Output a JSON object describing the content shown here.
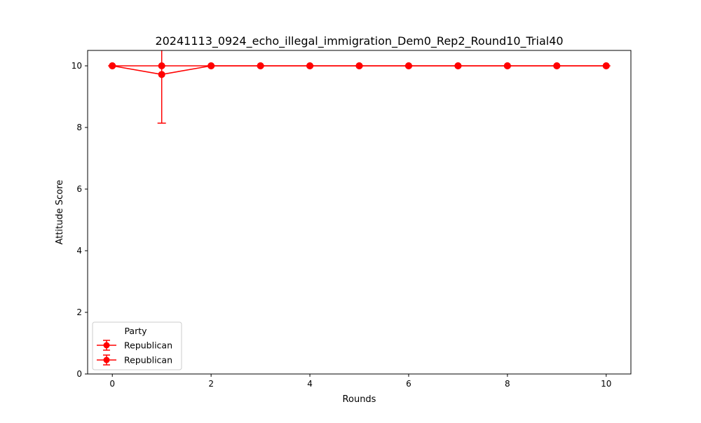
{
  "chart_data": {
    "type": "line",
    "title": "20241113_0924_echo_illegal_immigration_Dem0_Rep2_Round10_Trial40",
    "xlabel": "Rounds",
    "ylabel": "Attitude Score",
    "xlim": [
      -0.5,
      10.5
    ],
    "ylim": [
      0,
      10.5
    ],
    "x_ticks": [
      0,
      2,
      4,
      6,
      8,
      10
    ],
    "y_ticks": [
      0,
      2,
      4,
      6,
      8,
      10
    ],
    "grid": false,
    "legend": {
      "title": "Party",
      "placement": "lower-left"
    },
    "series": [
      {
        "name": "Republican",
        "color": "#ff0000",
        "marker": "circle",
        "x": [
          0,
          1,
          2,
          3,
          4,
          5,
          6,
          7,
          8,
          9,
          10
        ],
        "y": [
          10,
          10,
          10,
          10,
          10,
          10,
          10,
          10,
          10,
          10,
          10
        ],
        "yerr": [
          0,
          0,
          0,
          0,
          0,
          0,
          0,
          0,
          0,
          0,
          0
        ]
      },
      {
        "name": "Republican",
        "color": "#ff0000",
        "marker": "circle",
        "x": [
          0,
          1,
          2,
          3,
          4,
          5,
          6,
          7,
          8,
          9,
          10
        ],
        "y": [
          10,
          9.72,
          10,
          10,
          10,
          10,
          10,
          10,
          10,
          10,
          10
        ],
        "yerr": [
          0,
          1.58,
          0,
          0,
          0,
          0,
          0,
          0,
          0,
          0,
          0
        ]
      }
    ]
  }
}
